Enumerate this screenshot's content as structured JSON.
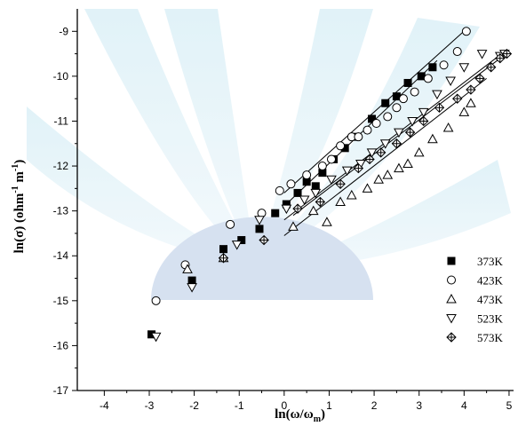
{
  "chart_data": {
    "type": "scatter",
    "title": "",
    "xlabel": "ln(ω/ω",
    "xlabel_sub": "m",
    "xlabel_tail": ")",
    "ylabel_parts": {
      "pre": "ln(σ) (ohm",
      "sup1": "-1",
      "mid": " m",
      "sup2": "-1",
      "post": ")"
    },
    "xlim": [
      -4.6,
      5.1
    ],
    "ylim": [
      -17,
      -8.5
    ],
    "xticks": [
      -4,
      -3,
      -2,
      -1,
      0,
      1,
      2,
      3,
      4,
      5
    ],
    "yticks": [
      -17,
      -16,
      -15,
      -14,
      -13,
      -12,
      -11,
      -10,
      -9
    ],
    "grid": false,
    "legend_position": "bottom-right",
    "series": [
      {
        "name": "373K",
        "marker": "filled-square",
        "points": [
          [
            -2.95,
            -15.75
          ],
          [
            -2.05,
            -14.55
          ],
          [
            -1.35,
            -13.85
          ],
          [
            -0.95,
            -13.65
          ],
          [
            -0.55,
            -13.4
          ],
          [
            -0.2,
            -13.05
          ],
          [
            0.05,
            -12.85
          ],
          [
            0.3,
            -12.6
          ],
          [
            0.5,
            -12.35
          ],
          [
            0.7,
            -12.45
          ],
          [
            0.85,
            -12.15
          ],
          [
            1.1,
            -11.85
          ],
          [
            1.35,
            -11.6
          ],
          [
            1.6,
            -11.35
          ],
          [
            1.95,
            -10.95
          ],
          [
            2.25,
            -10.6
          ],
          [
            2.5,
            -10.45
          ],
          [
            2.75,
            -10.15
          ],
          [
            3.05,
            -10.0
          ],
          [
            3.3,
            -9.8
          ]
        ],
        "fit": [
          [
            0.1,
            -12.8
          ],
          [
            3.4,
            -9.65
          ]
        ]
      },
      {
        "name": "423K",
        "marker": "open-circle",
        "points": [
          [
            -2.85,
            -15.0
          ],
          [
            -2.2,
            -14.2
          ],
          [
            -1.2,
            -13.3
          ],
          [
            -0.5,
            -13.05
          ],
          [
            -0.1,
            -12.55
          ],
          [
            0.15,
            -12.4
          ],
          [
            0.5,
            -12.2
          ],
          [
            0.85,
            -12.0
          ],
          [
            1.05,
            -11.85
          ],
          [
            1.25,
            -11.55
          ],
          [
            1.5,
            -11.35
          ],
          [
            1.65,
            -11.35
          ],
          [
            1.85,
            -11.2
          ],
          [
            2.05,
            -11.05
          ],
          [
            2.3,
            -10.9
          ],
          [
            2.5,
            -10.7
          ],
          [
            2.65,
            -10.5
          ],
          [
            2.9,
            -10.35
          ],
          [
            3.2,
            -10.05
          ],
          [
            3.55,
            -9.75
          ],
          [
            3.85,
            -9.45
          ],
          [
            4.05,
            -9.0
          ]
        ],
        "fit": [
          [
            0.0,
            -12.6
          ],
          [
            4.05,
            -8.95
          ]
        ]
      },
      {
        "name": "473K",
        "marker": "open-triangle-up",
        "points": [
          [
            -2.15,
            -14.3
          ],
          [
            -1.35,
            -14.05
          ],
          [
            0.2,
            -13.35
          ],
          [
            0.65,
            -13.0
          ],
          [
            0.95,
            -13.25
          ],
          [
            1.25,
            -12.8
          ],
          [
            1.5,
            -12.65
          ],
          [
            1.85,
            -12.5
          ],
          [
            2.1,
            -12.3
          ],
          [
            2.3,
            -12.2
          ],
          [
            2.55,
            -12.05
          ],
          [
            2.75,
            -11.95
          ],
          [
            3.0,
            -11.7
          ],
          [
            3.3,
            -11.4
          ],
          [
            3.65,
            -11.15
          ],
          [
            4.0,
            -10.8
          ],
          [
            4.15,
            -10.6
          ]
        ],
        "fit": [
          [
            0.0,
            -13.55
          ],
          [
            4.5,
            -10.05
          ]
        ]
      },
      {
        "name": "523K",
        "marker": "open-triangle-down",
        "points": [
          [
            -2.85,
            -15.8
          ],
          [
            -2.05,
            -14.7
          ],
          [
            -1.05,
            -13.75
          ],
          [
            -0.55,
            -13.2
          ],
          [
            0.05,
            -12.95
          ],
          [
            0.45,
            -12.75
          ],
          [
            0.7,
            -12.6
          ],
          [
            1.05,
            -12.3
          ],
          [
            1.4,
            -12.1
          ],
          [
            1.7,
            -11.95
          ],
          [
            1.95,
            -11.7
          ],
          [
            2.25,
            -11.5
          ],
          [
            2.55,
            -11.25
          ],
          [
            2.85,
            -11.0
          ],
          [
            3.1,
            -10.8
          ],
          [
            3.4,
            -10.4
          ],
          [
            3.7,
            -10.1
          ],
          [
            4.0,
            -9.8
          ],
          [
            4.4,
            -9.5
          ],
          [
            4.8,
            -9.55
          ],
          [
            4.9,
            -9.5
          ]
        ],
        "fit": [
          [
            0.0,
            -13.2
          ],
          [
            4.9,
            -9.45
          ]
        ]
      },
      {
        "name": "573K",
        "marker": "crossed-diamond",
        "points": [
          [
            -1.35,
            -14.05
          ],
          [
            -0.45,
            -13.65
          ],
          [
            0.3,
            -12.95
          ],
          [
            0.8,
            -12.8
          ],
          [
            1.25,
            -12.4
          ],
          [
            1.65,
            -12.05
          ],
          [
            1.9,
            -11.85
          ],
          [
            2.15,
            -11.7
          ],
          [
            2.5,
            -11.5
          ],
          [
            2.8,
            -11.25
          ],
          [
            3.1,
            -11.0
          ],
          [
            3.45,
            -10.7
          ],
          [
            3.85,
            -10.5
          ],
          [
            4.15,
            -10.3
          ],
          [
            4.35,
            -10.05
          ],
          [
            4.6,
            -9.8
          ],
          [
            4.8,
            -9.6
          ],
          [
            4.95,
            -9.5
          ]
        ],
        "fit": [
          [
            0.2,
            -13.1
          ],
          [
            5.0,
            -9.45
          ]
        ]
      }
    ]
  }
}
